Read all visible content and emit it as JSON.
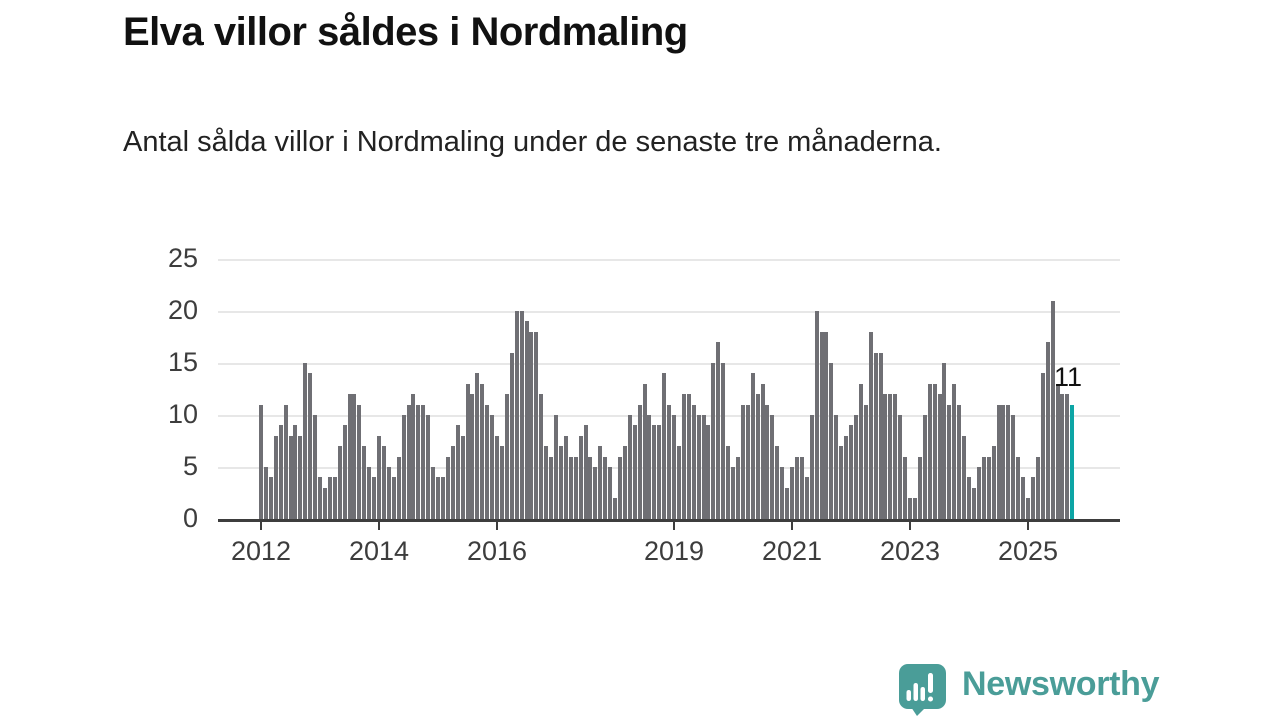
{
  "header": {
    "title": "Elva villor såldes i Nordmaling",
    "subtitle": "Antal sålda villor i Nordmaling under de senaste tre månaderna."
  },
  "branding": {
    "logo_text": "Newsworthy",
    "logo_color": "#4a9d98"
  },
  "chart_data": {
    "type": "bar",
    "title": "Elva villor såldes i Nordmaling",
    "xlabel": "",
    "ylabel": "",
    "x_start": "2012-01",
    "x_interval": "monthly",
    "x_end": "2025-10",
    "ylim": [
      0,
      25
    ],
    "y_ticks": [
      0,
      5,
      10,
      15,
      20,
      25
    ],
    "x_tick_labels": [
      "2012",
      "2014",
      "2016",
      "2019",
      "2021",
      "2023",
      "2025"
    ],
    "x_tick_month_indices": [
      0,
      24,
      48,
      84,
      108,
      132,
      156
    ],
    "grid": "horizontal",
    "legend": "none",
    "series": [
      {
        "name": "Antal sålda villor",
        "values": [
          11,
          5,
          4,
          8,
          9,
          11,
          8,
          9,
          8,
          15,
          14,
          10,
          4,
          3,
          4,
          4,
          7,
          9,
          12,
          12,
          11,
          7,
          5,
          4,
          8,
          7,
          5,
          4,
          6,
          10,
          11,
          12,
          11,
          11,
          10,
          5,
          4,
          4,
          6,
          7,
          9,
          8,
          13,
          12,
          14,
          13,
          11,
          10,
          8,
          7,
          12,
          16,
          20,
          20,
          19,
          18,
          18,
          12,
          7,
          6,
          10,
          7,
          8,
          6,
          6,
          8,
          9,
          6,
          5,
          7,
          6,
          5,
          2,
          6,
          7,
          10,
          9,
          11,
          13,
          10,
          9,
          9,
          14,
          11,
          10,
          7,
          12,
          12,
          11,
          10,
          10,
          9,
          15,
          17,
          15,
          7,
          5,
          6,
          11,
          11,
          14,
          12,
          13,
          11,
          10,
          7,
          5,
          3,
          5,
          6,
          6,
          4,
          10,
          20,
          18,
          18,
          15,
          10,
          7,
          8,
          9,
          10,
          13,
          11,
          18,
          16,
          16,
          12,
          12,
          12,
          10,
          6,
          2,
          2,
          6,
          10,
          13,
          13,
          12,
          15,
          11,
          13,
          11,
          8,
          4,
          3,
          5,
          6,
          6,
          7,
          11,
          11,
          11,
          10,
          6,
          4,
          2,
          4,
          6,
          14,
          17,
          21,
          13,
          12,
          12,
          11
        ]
      }
    ],
    "highlight": {
      "index": 165,
      "month": "2025-10",
      "value": 11,
      "label": "11",
      "color": "#0da5a5"
    },
    "colors": {
      "bar": "#6f6f74",
      "highlight": "#0da5a5",
      "grid": "#e7e7e7",
      "axis": "#3d3d3d"
    }
  }
}
